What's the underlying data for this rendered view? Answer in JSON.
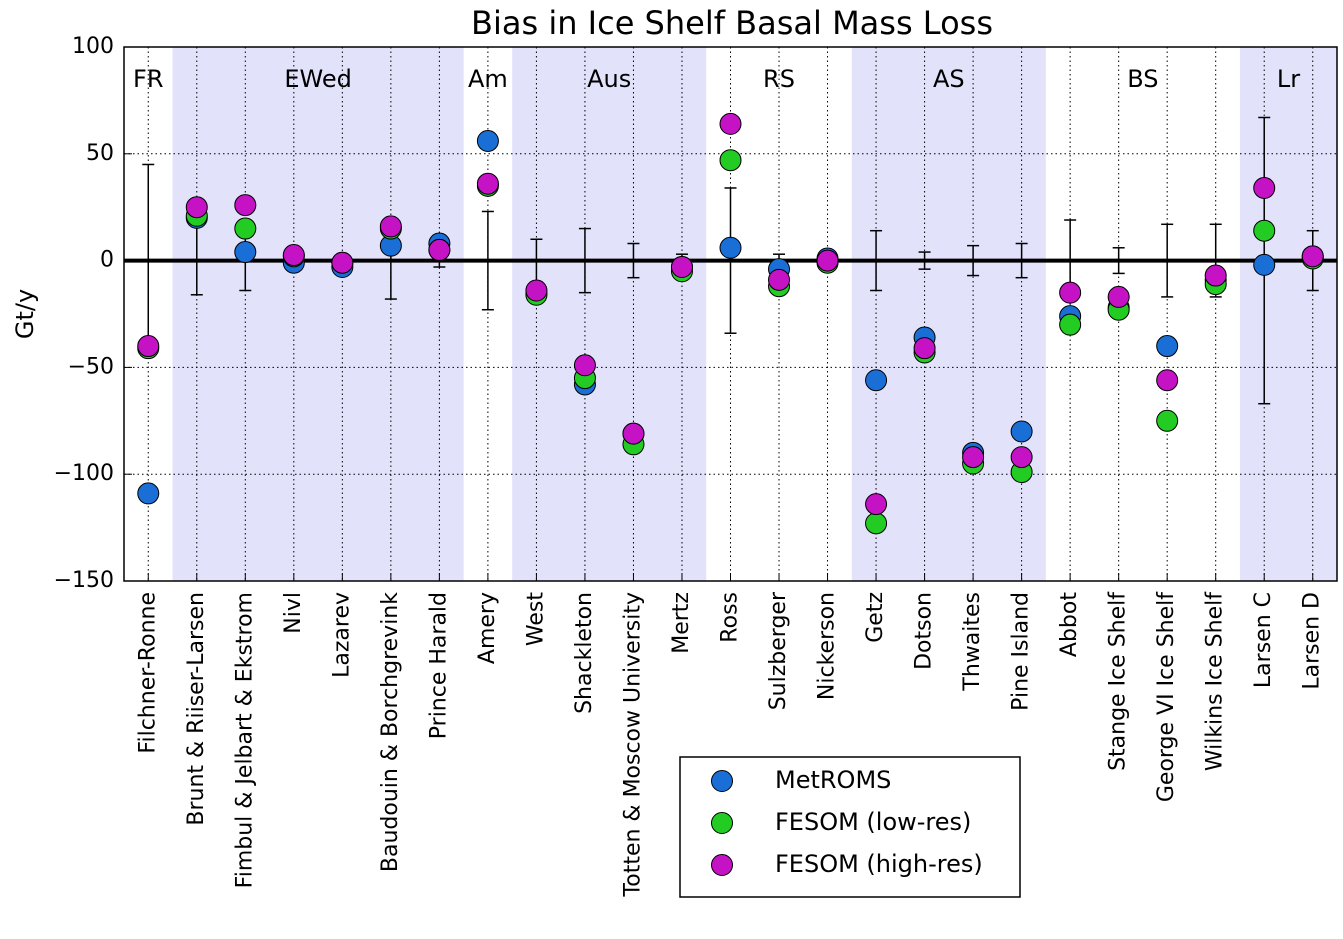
{
  "chart_data": {
    "type": "scatter",
    "title": "Bias in Ice Shelf Basal Mass Loss",
    "y_label": "Gt/y",
    "categories": [
      "Filchner-Ronne",
      "Brunt & Riiser-Larsen",
      "Fimbul & Jelbart & Ekstrom",
      "Nivl",
      "Lazarev",
      "Baudouin & Borchgrevink",
      "Prince Harald",
      "Amery",
      "West",
      "Shackleton",
      "Totten & Moscow University",
      "Mertz",
      "Ross",
      "Sulzberger",
      "Nickerson",
      "Getz",
      "Dotson",
      "Thwaites",
      "Pine Island",
      "Abbot",
      "Stange Ice Shelf",
      "George VI Ice Shelf",
      "Wilkins Ice Shelf",
      "Larsen C",
      "Larsen D"
    ],
    "series": [
      {
        "name": "MetROMS",
        "color": "#1a6fd6",
        "values": [
          -109,
          20,
          4,
          -1,
          -3,
          7,
          8,
          56,
          -15,
          -58,
          -81,
          -3,
          6,
          -4,
          1,
          -56,
          -36,
          -90,
          -80,
          -26,
          -22,
          -40,
          -9,
          -2,
          2
        ]
      },
      {
        "name": "FESOM (low-res)",
        "color": "#22cc22",
        "values": [
          -41,
          21,
          15,
          2,
          -1,
          15,
          5,
          35,
          -16,
          -55,
          -86,
          -5,
          47,
          -12,
          -1,
          -123,
          -43,
          -95,
          -99,
          -30,
          -23,
          -75,
          -11,
          14,
          1
        ]
      },
      {
        "name": "FESOM (high-res)",
        "color": "#c412c4",
        "values": [
          -40,
          25,
          26,
          2.6,
          -1,
          16,
          5,
          36,
          -14,
          -49,
          -81,
          -3,
          64,
          -9,
          0,
          -114,
          -41,
          -92,
          -92,
          -15,
          -17,
          -56,
          -7,
          34,
          2
        ]
      }
    ],
    "errors": [
      45,
      16,
      14,
      2,
      2,
      18,
      3,
      23,
      10,
      15,
      8,
      3,
      34,
      3,
      1,
      14,
      4,
      7,
      8,
      19,
      6,
      17,
      17,
      67,
      14
    ],
    "regions": [
      {
        "label": "FR",
        "start": 0,
        "end": 0,
        "shaded": false
      },
      {
        "label": "EWed",
        "start": 1,
        "end": 6,
        "shaded": true
      },
      {
        "label": "Am",
        "start": 7,
        "end": 7,
        "shaded": false
      },
      {
        "label": "Aus",
        "start": 8,
        "end": 11,
        "shaded": true
      },
      {
        "label": "RS",
        "start": 12,
        "end": 14,
        "shaded": false
      },
      {
        "label": "AS",
        "start": 15,
        "end": 18,
        "shaded": true
      },
      {
        "label": "BS",
        "start": 19,
        "end": 22,
        "shaded": false
      },
      {
        "label": "Lr",
        "start": 23,
        "end": 24,
        "shaded": true
      }
    ],
    "ylim": [
      -150,
      100
    ],
    "yticks": [
      {
        "value": -150,
        "label": "−150"
      },
      {
        "value": -100,
        "label": "−100"
      },
      {
        "value": -50,
        "label": "−50"
      },
      0,
      50,
      100
    ],
    "grid": true,
    "legend": "lower center"
  }
}
